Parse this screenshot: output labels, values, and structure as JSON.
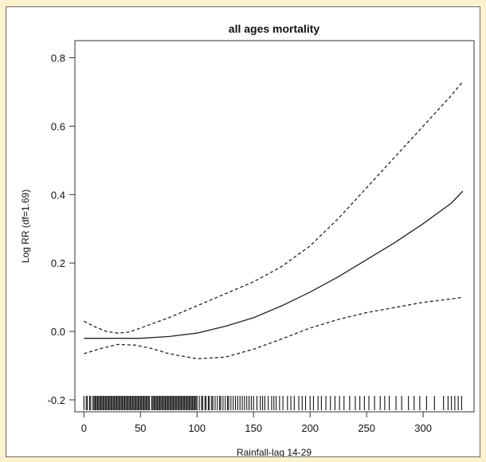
{
  "colors": {
    "page_background": "#fbf2cf",
    "plot_background": "#ffffff",
    "line": "#222222"
  },
  "chart_data": {
    "type": "line",
    "title": "all ages mortality",
    "xlabel": "Rainfall-lag 14-29",
    "ylabel": "Log RR  (df=1.69)",
    "xlim": [
      -8,
      345
    ],
    "ylim": [
      -0.235,
      0.85
    ],
    "grid": false,
    "legend": "none",
    "x_ticks": [
      0,
      50,
      100,
      150,
      200,
      250,
      300
    ],
    "x_tick_labels": [
      "0",
      "50",
      "100",
      "150",
      "200",
      "250",
      "300"
    ],
    "y_ticks": [
      -0.2,
      0.0,
      0.2,
      0.4,
      0.6,
      0.8
    ],
    "y_tick_labels": [
      "-0.2",
      "0.0",
      "0.2",
      "0.4",
      "0.6",
      "0.8"
    ],
    "series": [
      {
        "style": "solid",
        "x": [
          0,
          25,
          50,
          75,
          100,
          125,
          150,
          175,
          200,
          225,
          250,
          275,
          300,
          325,
          335
        ],
        "y": [
          -0.02,
          -0.02,
          -0.02,
          -0.015,
          -0.005,
          0.015,
          0.04,
          0.075,
          0.115,
          0.16,
          0.21,
          0.26,
          0.315,
          0.375,
          0.41
        ]
      },
      {
        "style": "dashed",
        "x": [
          0,
          10,
          20,
          30,
          40,
          50,
          75,
          100,
          125,
          150,
          175,
          200,
          225,
          250,
          275,
          300,
          325,
          335
        ],
        "y": [
          0.03,
          0.013,
          0.0,
          -0.005,
          -0.002,
          0.01,
          0.04,
          0.075,
          0.11,
          0.145,
          0.19,
          0.25,
          0.33,
          0.42,
          0.51,
          0.6,
          0.69,
          0.73
        ]
      },
      {
        "style": "dashed",
        "x": [
          0,
          15,
          30,
          45,
          60,
          75,
          100,
          125,
          150,
          175,
          200,
          225,
          250,
          275,
          300,
          325,
          335
        ],
        "y": [
          -0.065,
          -0.05,
          -0.038,
          -0.04,
          -0.05,
          -0.065,
          -0.08,
          -0.075,
          -0.052,
          -0.022,
          0.01,
          0.035,
          0.055,
          0.07,
          0.085,
          0.095,
          0.1
        ]
      }
    ],
    "rug": [
      0,
      2,
      3,
      5,
      6,
      8,
      9,
      10,
      11,
      12,
      13,
      14,
      15,
      16,
      17,
      18,
      19,
      20,
      21,
      22,
      23,
      24,
      25,
      26,
      27,
      28,
      29,
      30,
      31,
      32,
      33,
      34,
      35,
      36,
      37,
      38,
      39,
      40,
      41,
      42,
      43,
      44,
      45,
      46,
      47,
      48,
      49,
      50,
      51,
      52,
      53,
      54,
      55,
      56,
      57,
      58,
      60,
      61,
      62,
      63,
      64,
      65,
      66,
      67,
      68,
      69,
      70,
      71,
      72,
      73,
      74,
      75,
      76,
      77,
      78,
      79,
      80,
      81,
      82,
      83,
      84,
      85,
      86,
      87,
      88,
      89,
      90,
      91,
      92,
      93,
      94,
      95,
      96,
      97,
      98,
      99,
      100,
      102,
      104,
      105,
      107,
      108,
      110,
      111,
      113,
      114,
      116,
      118,
      120,
      121,
      123,
      125,
      127,
      128,
      130,
      132,
      134,
      136,
      138,
      140,
      142,
      144,
      146,
      148,
      150,
      153,
      156,
      158,
      160,
      163,
      166,
      168,
      170,
      173,
      176,
      180,
      183,
      186,
      190,
      193,
      196,
      200,
      203,
      207,
      210,
      214,
      218,
      222,
      226,
      230,
      235,
      240,
      244,
      248,
      252,
      257,
      262,
      266,
      270,
      276,
      281,
      287,
      292,
      297,
      303,
      310,
      318,
      322,
      325,
      328,
      331,
      334
    ]
  }
}
